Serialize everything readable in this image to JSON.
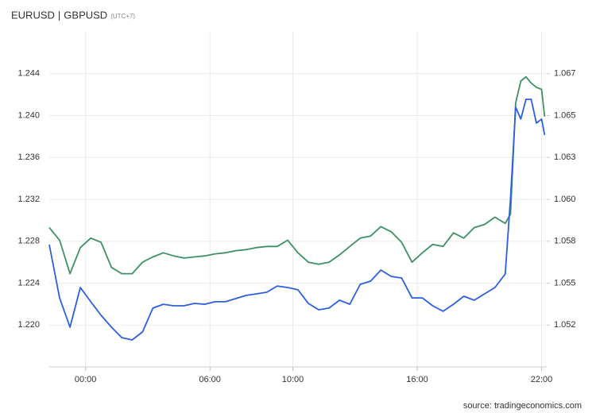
{
  "chart_data": {
    "type": "line",
    "separator": "|",
    "timezone": "(UTC+7)",
    "source": "source: tradingeconomics.com",
    "x": [
      -1.75,
      -1.25,
      -0.75,
      -0.25,
      0.25,
      0.75,
      1.25,
      1.75,
      2.25,
      2.75,
      3.25,
      3.75,
      4.25,
      4.75,
      5.25,
      5.75,
      6.25,
      6.75,
      7.25,
      7.75,
      8.25,
      8.75,
      9.25,
      9.75,
      10.25,
      10.75,
      11.25,
      11.75,
      12.25,
      12.75,
      13.25,
      13.75,
      14.25,
      14.75,
      15.25,
      15.75,
      16.25,
      16.75,
      17.25,
      17.75,
      18.25,
      18.75,
      19.25,
      19.75,
      20.25,
      20.5,
      20.75,
      21,
      21.25,
      21.5,
      21.75,
      22,
      22.15
    ],
    "xlim": [
      -1.75,
      22.25
    ],
    "xticks": [
      {
        "value": 0,
        "label": "00:00"
      },
      {
        "value": 6,
        "label": "06:00"
      },
      {
        "value": 10,
        "label": "10:00"
      },
      {
        "value": 16,
        "label": "16:00"
      },
      {
        "value": 22,
        "label": "22:00"
      }
    ],
    "ylim": [
      1.216,
      1.248
    ],
    "yticks": [
      {
        "value": 1.22,
        "label": "1.220"
      },
      1.224,
      1.228,
      1.232,
      1.236,
      {
        "value": 1.24,
        "label": "1.240"
      },
      1.244
    ],
    "y2lim": [
      1.05,
      1.07
    ],
    "y2ticks": [
      {
        "value": 1.0525,
        "label": "1.052"
      },
      {
        "value": 1.055,
        "label": "1.055"
      },
      {
        "value": 1.0575,
        "label": "1.058"
      },
      {
        "value": 1.06,
        "label": "1.060"
      },
      {
        "value": 1.0625,
        "label": "1.063"
      },
      {
        "value": 1.065,
        "label": "1.065"
      },
      {
        "value": 1.0675,
        "label": "1.067"
      }
    ],
    "grid": true,
    "series": [
      {
        "name": "EURUSD",
        "color": "#2c5fe0",
        "axis": "y2",
        "values": [
          1.0573,
          1.05412,
          1.05237,
          1.05474,
          1.05389,
          1.05308,
          1.05237,
          1.05175,
          1.05161,
          1.05209,
          1.05351,
          1.05374,
          1.05365,
          1.05365,
          1.05379,
          1.05374,
          1.05389,
          1.05389,
          1.05408,
          1.05427,
          1.05436,
          1.05446,
          1.05483,
          1.05474,
          1.0546,
          1.05379,
          1.05341,
          1.05351,
          1.05398,
          1.05374,
          1.05493,
          1.05512,
          1.05578,
          1.0554,
          1.05531,
          1.05412,
          1.05412,
          1.05365,
          1.05332,
          1.05374,
          1.05422,
          1.05398,
          1.05436,
          1.05474,
          1.05555,
          1.06005,
          1.0655,
          1.06479,
          1.06597,
          1.06597,
          1.06455,
          1.06479,
          1.06384
        ]
      },
      {
        "name": "GBPUSD",
        "color": "#3d9163",
        "values": [
          1.2293,
          1.2281,
          1.2249,
          1.2274,
          1.2283,
          1.2279,
          1.2255,
          1.2249,
          1.2249,
          1.226,
          1.2265,
          1.2269,
          1.2266,
          1.2264,
          1.2265,
          1.2266,
          1.2268,
          1.2269,
          1.2271,
          1.2272,
          1.2274,
          1.2275,
          1.2275,
          1.2281,
          1.2269,
          1.226,
          1.2258,
          1.226,
          1.2267,
          1.2275,
          1.2283,
          1.2285,
          1.2294,
          1.2289,
          1.2279,
          1.226,
          1.2269,
          1.2277,
          1.2275,
          1.2288,
          1.2283,
          1.2293,
          1.2296,
          1.2303,
          1.2297,
          1.2306,
          1.2412,
          1.2433,
          1.2437,
          1.2431,
          1.2427,
          1.2425,
          1.2399
        ]
      }
    ]
  }
}
